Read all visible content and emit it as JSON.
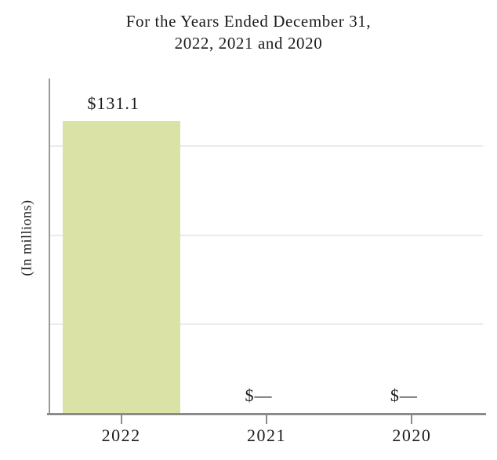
{
  "title": {
    "line1": "For the Years Ended December 31,",
    "line2": "2022, 2021 and 2020"
  },
  "chart_data": {
    "type": "bar",
    "title": "For the Years Ended December 31, 2022, 2021 and 2020",
    "title_lines": [
      "For the Years Ended December 31,",
      "2022, 2021 and 2020"
    ],
    "categories": [
      "2022",
      "2021",
      "2020"
    ],
    "values": [
      131.1,
      0,
      0
    ],
    "value_labels": [
      "$131.1",
      "$—",
      "$—"
    ],
    "xlabel": "",
    "ylabel": "(In millions)",
    "ylim": [
      0,
      150
    ],
    "gridline_values": [
      40,
      80,
      120
    ],
    "grid": "horizontal",
    "legend": "none",
    "colors": {
      "bar": "#dae2a5",
      "x_axis": "#8b8b8b",
      "y_axis": "#9a9a9a",
      "gridline": "#ebebeb",
      "text": "#1c1c1c",
      "background": "#ffffff"
    }
  }
}
